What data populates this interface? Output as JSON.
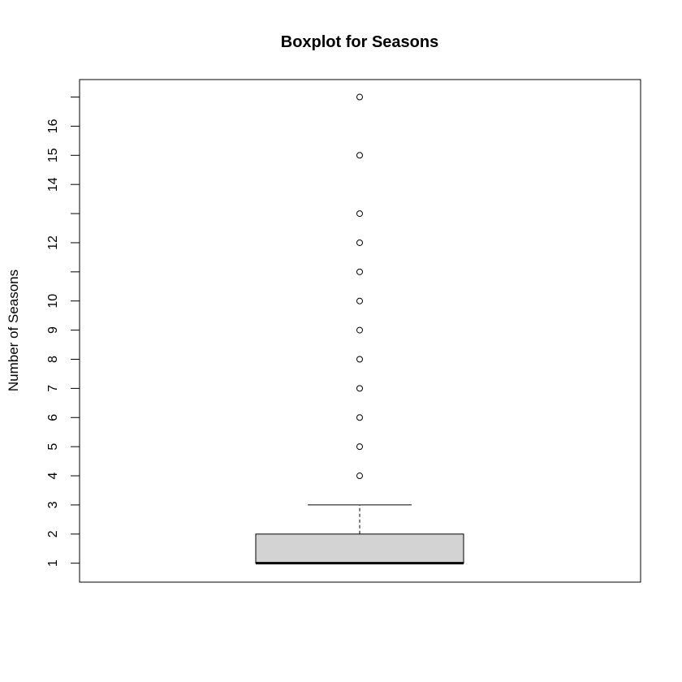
{
  "chart_data": {
    "type": "boxplot",
    "title": "Boxplot for Seasons",
    "xlabel": "",
    "ylabel": "Number of Seasons",
    "ylim": [
      0.35,
      17.6
    ],
    "yticks": [
      1,
      2,
      3,
      4,
      5,
      6,
      7,
      8,
      9,
      10,
      11,
      12,
      13,
      14,
      15,
      16,
      17
    ],
    "ytick_labels": [
      "1",
      "2",
      "3",
      "4",
      "5",
      "6",
      "7",
      "8",
      "9",
      "10",
      "",
      "12",
      "",
      "14",
      "15",
      "16",
      ""
    ],
    "box": {
      "whisker_low": 1,
      "q1": 1,
      "median": 1,
      "q3": 2,
      "whisker_high": 3
    },
    "outliers": [
      4,
      5,
      6,
      7,
      8,
      9,
      10,
      11,
      12,
      13,
      15,
      17
    ],
    "colors": {
      "box_fill": "#d3d3d3",
      "stroke": "#000000",
      "background": "#ffffff"
    }
  }
}
